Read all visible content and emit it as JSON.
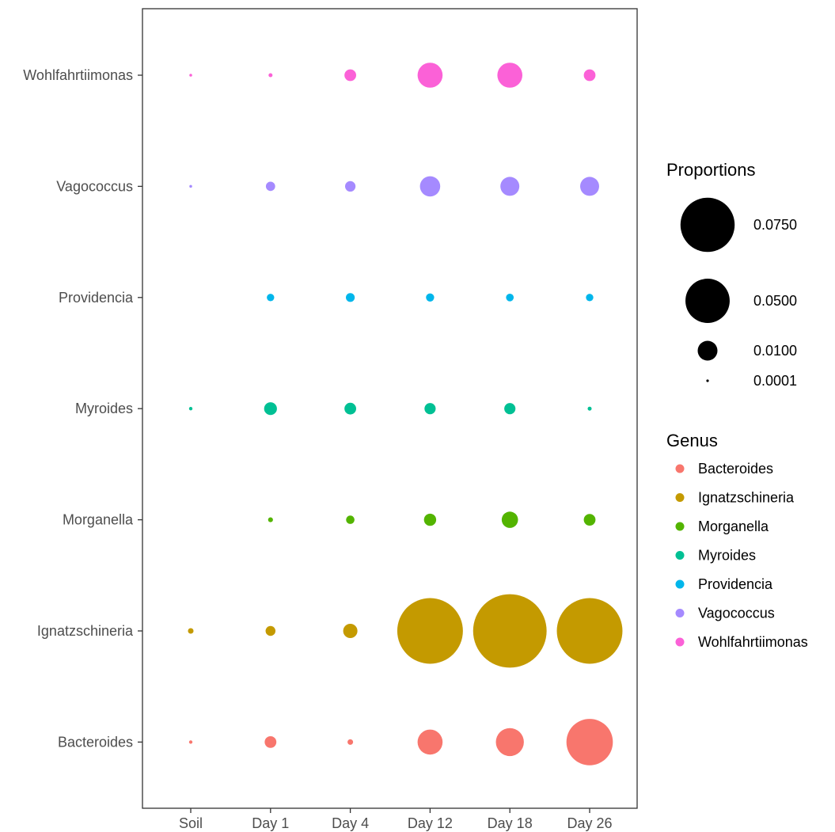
{
  "chart_data": {
    "type": "scatter",
    "title": "",
    "xlabel": "",
    "ylabel": "",
    "x_categories": [
      "Soil",
      "Day 1",
      "Day 4",
      "Day 12",
      "Day 18",
      "Day 26"
    ],
    "y_categories": [
      "Bacteroides",
      "Ignatzschineria",
      "Morganella",
      "Myroides",
      "Providencia",
      "Vagococcus",
      "Wohlfahrtiimonas"
    ],
    "size_legend": {
      "title": "Proportions",
      "entries": [
        {
          "label": "0.0750",
          "value": 0.075
        },
        {
          "label": "0.0500",
          "value": 0.05
        },
        {
          "label": "0.0100",
          "value": 0.01
        },
        {
          "label": "0.0001",
          "value": 0.0001
        }
      ]
    },
    "color_legend": {
      "title": "Genus",
      "entries": [
        {
          "label": "Bacteroides",
          "color": "#F8766D"
        },
        {
          "label": "Ignatzschineria",
          "color": "#C49A00"
        },
        {
          "label": "Morganella",
          "color": "#53B400"
        },
        {
          "label": "Myroides",
          "color": "#00C094"
        },
        {
          "label": "Providencia",
          "color": "#00B6EB"
        },
        {
          "label": "Vagococcus",
          "color": "#A58AFF"
        },
        {
          "label": "Wohlfahrtiimonas",
          "color": "#FB61D7"
        }
      ]
    },
    "grid": false,
    "legend_position": "right",
    "series": [
      {
        "genus": "Bacteroides",
        "values": [
          0.0003,
          0.0035,
          0.0008,
          0.016,
          0.02,
          0.055
        ]
      },
      {
        "genus": "Ignatzschineria",
        "values": [
          0.0008,
          0.0025,
          0.0052,
          0.11,
          0.138,
          0.11
        ]
      },
      {
        "genus": "Morganella",
        "values": [
          null,
          0.0006,
          0.0018,
          0.0038,
          0.0068,
          0.0035
        ]
      },
      {
        "genus": "Myroides",
        "values": [
          0.0003,
          0.0042,
          0.0035,
          0.0032,
          0.0032,
          0.0004
        ]
      },
      {
        "genus": "Providencia",
        "values": [
          null,
          0.0014,
          0.002,
          0.0017,
          0.0015,
          0.0014
        ]
      },
      {
        "genus": "Vagococcus",
        "values": [
          0.0002,
          0.0022,
          0.0028,
          0.0105,
          0.0092,
          0.0092
        ]
      },
      {
        "genus": "Wohlfahrtiimonas",
        "values": [
          0.0002,
          0.0004,
          0.0035,
          0.016,
          0.016,
          0.0035
        ]
      }
    ]
  }
}
